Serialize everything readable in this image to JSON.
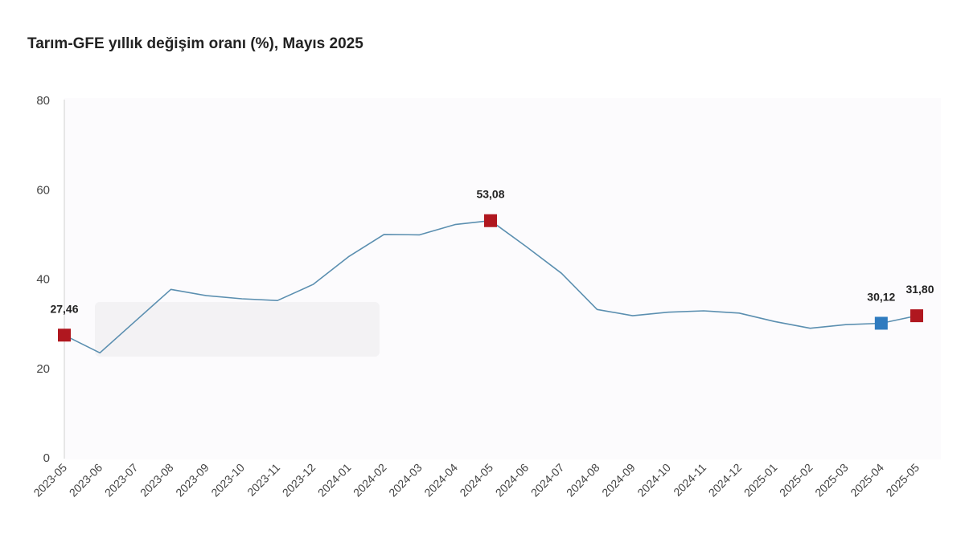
{
  "chart_data": {
    "type": "line",
    "title": "Tarım-GFE yıllık değişim oranı (%), Mayıs 2025",
    "xlabel": "",
    "ylabel": "",
    "ylim": [
      0,
      80
    ],
    "yticks": [
      "0",
      "20",
      "40",
      "60",
      "80"
    ],
    "grid": false,
    "categories": [
      "2023-05",
      "2023-06",
      "2023-07",
      "2023-08",
      "2023-09",
      "2023-10",
      "2023-11",
      "2023-12",
      "2024-01",
      "2024-02",
      "2024-03",
      "2024-04",
      "2024-05",
      "2024-06",
      "2024-07",
      "2024-08",
      "2024-09",
      "2024-10",
      "2024-11",
      "2024-12",
      "2025-01",
      "2025-02",
      "2025-03",
      "2025-04",
      "2025-05"
    ],
    "series": [
      {
        "values": [
          27.46,
          23.5,
          30.6,
          37.7,
          36.3,
          35.6,
          35.2,
          38.8,
          45.0,
          50.0,
          49.9,
          52.2,
          53.08,
          47.3,
          41.3,
          33.2,
          31.8,
          32.6,
          32.9,
          32.4,
          30.5,
          29.0,
          29.8,
          30.12,
          31.8
        ],
        "color": "#5b8fb0"
      }
    ],
    "annotations": [
      {
        "index": 0,
        "label": "27,46",
        "color": "#b0171f"
      },
      {
        "index": 12,
        "label": "53,08",
        "color": "#b0171f"
      },
      {
        "index": 23,
        "label": "30,12",
        "color": "#2f7bbf"
      },
      {
        "index": 24,
        "label": "31,80",
        "color": "#b0171f"
      }
    ]
  }
}
